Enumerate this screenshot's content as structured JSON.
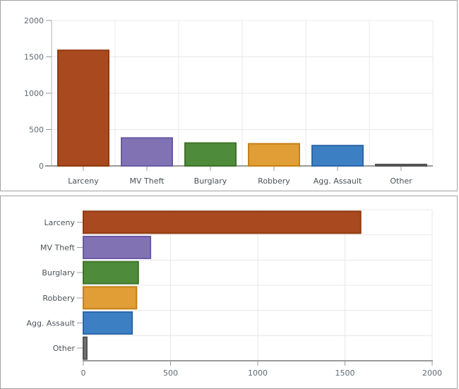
{
  "page": {
    "background": "#ffffff"
  },
  "chart_data": [
    {
      "type": "bar",
      "orientation": "vertical",
      "title": "",
      "categories": [
        "Larceny",
        "MV Theft",
        "Burglary",
        "Robbery",
        "Agg. Assault",
        "Other"
      ],
      "values": [
        1590,
        385,
        315,
        305,
        280,
        20
      ],
      "xlabel": "",
      "ylabel": "",
      "value_axis": {
        "min": 0,
        "max": 2000,
        "ticks": [
          0,
          500,
          1000,
          1500,
          2000
        ],
        "tick_labels": [
          "0",
          "500",
          "1000",
          "1500",
          "2000"
        ]
      },
      "grid": true,
      "legend": "none"
    },
    {
      "type": "bar",
      "orientation": "horizontal",
      "title": "",
      "categories": [
        "Larceny",
        "MV Theft",
        "Burglary",
        "Robbery",
        "Agg. Assault",
        "Other"
      ],
      "values": [
        1590,
        385,
        315,
        305,
        280,
        20
      ],
      "xlabel": "",
      "ylabel": "",
      "value_axis": {
        "min": 0,
        "max": 2000,
        "ticks": [
          0,
          500,
          1000,
          1500,
          2000
        ],
        "tick_labels": [
          "0",
          "500",
          "1000",
          "1500",
          "2000"
        ]
      },
      "grid": true,
      "legend": "none"
    }
  ],
  "style": {
    "bar_colors": [
      {
        "name": "rust",
        "fill": "#A8491F",
        "stroke": "#913A10"
      },
      {
        "name": "purple",
        "fill": "#8172B4",
        "stroke": "#6A5AA6"
      },
      {
        "name": "green",
        "fill": "#4E8C3B",
        "stroke": "#3D7329"
      },
      {
        "name": "orange",
        "fill": "#E19D36",
        "stroke": "#C68115"
      },
      {
        "name": "blue",
        "fill": "#3C80C3",
        "stroke": "#2C67A9"
      },
      {
        "name": "gray",
        "fill": "#737373",
        "stroke": "#525252"
      }
    ],
    "grid_color": "#e8e8e8",
    "axis_line_color": "#9a9a9a",
    "minor_axis_line_color": "#b3b3b3",
    "tick_mark_color": "#9a9a9a",
    "value_label_color": "#5f6a74",
    "category_label_color": "#4b5258",
    "panel_border_color": "#a2a2a2",
    "panel_background": "#ffffff"
  }
}
